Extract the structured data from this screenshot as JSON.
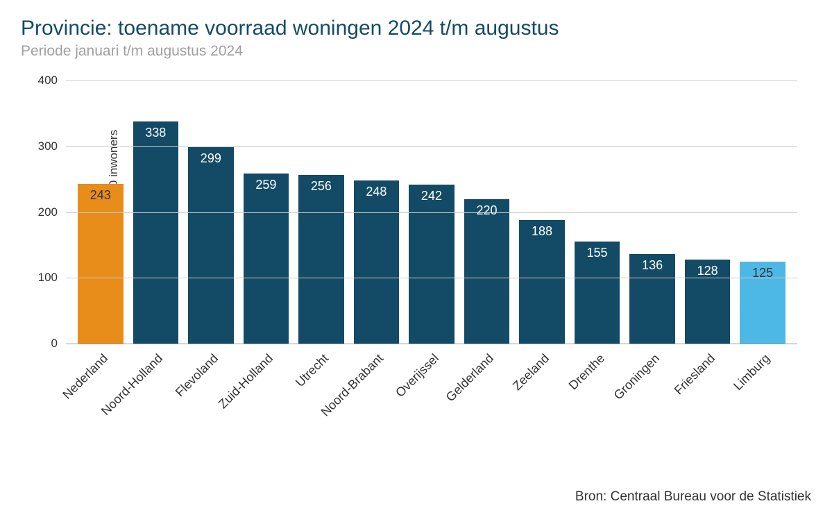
{
  "title": "Provincie: toename voorraad woningen 2024 t/m augustus",
  "subtitle": "Periode januari t/m augustus 2024",
  "y_axis_label": "Toename per 100.000 inwoners",
  "source": "Bron: Centraal Bureau voor de Statistiek",
  "chart": {
    "type": "bar",
    "ylim": [
      0,
      400
    ],
    "ytick_step": 100,
    "yticks": [
      0,
      100,
      200,
      300,
      400
    ],
    "background_color": "#ffffff",
    "grid_color": "#cccccc",
    "title_color": "#134b66",
    "subtitle_color": "#a0a0a0",
    "text_color": "#333333",
    "bar_label_fontsize": 18,
    "axis_label_fontsize": 17,
    "x_label_fontsize": 18,
    "title_fontsize": 30,
    "subtitle_fontsize": 21,
    "x_label_rotation": -45,
    "categories": [
      "Nederland",
      "Noord-Holland",
      "Flevoland",
      "Zuid-Holland",
      "Utrecht",
      "Noord-Brabant",
      "Overijssel",
      "Gelderland",
      "Zeeland",
      "Drenthe",
      "Groningen",
      "Friesland",
      "Limburg"
    ],
    "values": [
      243,
      338,
      299,
      259,
      256,
      248,
      242,
      220,
      188,
      155,
      136,
      128,
      125
    ],
    "bar_colors": [
      "#e88c1a",
      "#134b66",
      "#134b66",
      "#134b66",
      "#134b66",
      "#134b66",
      "#134b66",
      "#134b66",
      "#134b66",
      "#134b66",
      "#134b66",
      "#134b66",
      "#4db8e6"
    ],
    "value_label_colors": [
      "dark",
      "white",
      "white",
      "white",
      "white",
      "white",
      "white",
      "white",
      "white",
      "white",
      "white",
      "white",
      "dark"
    ]
  }
}
